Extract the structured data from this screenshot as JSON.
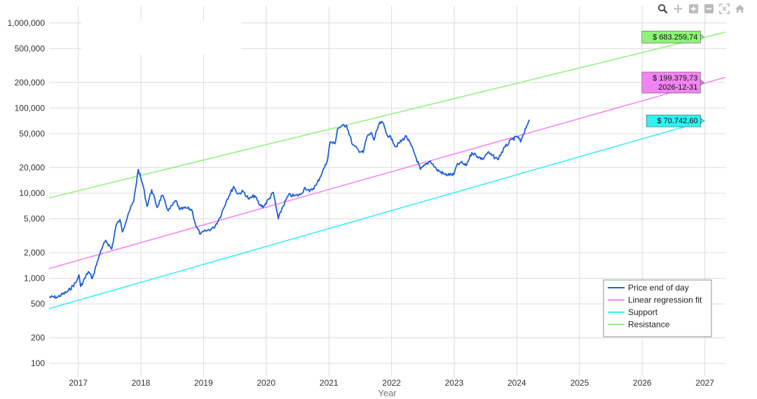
{
  "toolbar": {
    "icons": [
      "zoom-icon",
      "pan-icon",
      "zoom-in-icon",
      "zoom-out-icon",
      "autoscale-icon",
      "reset-axes-icon"
    ]
  },
  "chart_data": {
    "type": "line",
    "xlabel": "Year",
    "ylabel": "",
    "y_scale": "log",
    "grid": true,
    "legend_position": "bottom-right",
    "xlim": [
      "2016-07-15",
      "2027-05-01"
    ],
    "ylim": [
      70,
      1600000
    ],
    "x_ticks": [
      "2017",
      "2018",
      "2019",
      "2020",
      "2021",
      "2022",
      "2023",
      "2024",
      "2025",
      "2026",
      "2027"
    ],
    "y_ticks": [
      {
        "value": 100,
        "label": "100"
      },
      {
        "value": 200,
        "label": "200"
      },
      {
        "value": 500,
        "label": "500"
      },
      {
        "value": 1000,
        "label": "1,000"
      },
      {
        "value": 2000,
        "label": "2,000"
      },
      {
        "value": 5000,
        "label": "5,000"
      },
      {
        "value": 10000,
        "label": "10,000"
      },
      {
        "value": 20000,
        "label": "20,000"
      },
      {
        "value": 50000,
        "label": "50,000"
      },
      {
        "value": 100000,
        "label": "100,000"
      },
      {
        "value": 200000,
        "label": "200,000"
      },
      {
        "value": 500000,
        "label": "500,000"
      },
      {
        "value": 1000000,
        "label": "1,000,000"
      }
    ],
    "series": [
      {
        "name": "Price end of day",
        "color": "#1f5fd6",
        "type": "line",
        "x": [
          "2016-07-15",
          "2016-09-01",
          "2016-11-01",
          "2016-12-20",
          "2017-01-05",
          "2017-01-15",
          "2017-03-01",
          "2017-03-25",
          "2017-05-01",
          "2017-06-10",
          "2017-07-15",
          "2017-08-10",
          "2017-09-01",
          "2017-09-15",
          "2017-10-20",
          "2017-11-20",
          "2017-12-17",
          "2018-01-15",
          "2018-02-06",
          "2018-03-05",
          "2018-04-06",
          "2018-05-05",
          "2018-06-10",
          "2018-07-25",
          "2018-08-15",
          "2018-09-20",
          "2018-10-25",
          "2018-11-20",
          "2018-12-15",
          "2019-01-15",
          "2019-03-01",
          "2019-04-05",
          "2019-05-15",
          "2019-06-26",
          "2019-07-20",
          "2019-08-20",
          "2019-09-24",
          "2019-10-26",
          "2019-11-25",
          "2019-12-18",
          "2020-02-12",
          "2020-03-12",
          "2020-04-01",
          "2020-05-10",
          "2020-06-15",
          "2020-07-20",
          "2020-08-15",
          "2020-09-10",
          "2020-10-20",
          "2020-11-25",
          "2020-12-20",
          "2021-01-08",
          "2021-02-05",
          "2021-02-20",
          "2021-03-13",
          "2021-04-14",
          "2021-05-19",
          "2021-06-22",
          "2021-07-20",
          "2021-08-10",
          "2021-09-07",
          "2021-09-21",
          "2021-10-20",
          "2021-11-10",
          "2021-12-05",
          "2022-01-05",
          "2022-01-24",
          "2022-03-28",
          "2022-05-10",
          "2022-06-18",
          "2022-08-15",
          "2022-09-20",
          "2022-11-09",
          "2022-12-30",
          "2023-01-15",
          "2023-02-10",
          "2023-03-10",
          "2023-04-14",
          "2023-06-15",
          "2023-07-15",
          "2023-09-11",
          "2023-10-25",
          "2023-12-05",
          "2024-01-10",
          "2024-01-23",
          "2024-02-15",
          "2024-02-28",
          "2024-03-10",
          "2024-03-14"
        ],
        "y": [
          600,
          600,
          700,
          900,
          1100,
          800,
          1200,
          1000,
          1800,
          2800,
          2200,
          4200,
          4900,
          3500,
          5800,
          8000,
          19000,
          12000,
          7000,
          11000,
          6800,
          9500,
          6200,
          8200,
          6400,
          6700,
          6400,
          4000,
          3300,
          3600,
          3900,
          5100,
          8200,
          12000,
          9800,
          10500,
          8500,
          9400,
          7200,
          7000,
          10200,
          5000,
          6500,
          9500,
          9300,
          9600,
          11700,
          10400,
          12500,
          18000,
          23000,
          40000,
          38000,
          57000,
          61000,
          63000,
          37000,
          32000,
          30000,
          46000,
          51000,
          42000,
          65000,
          68000,
          49000,
          43000,
          35000,
          47000,
          31000,
          19000,
          24000,
          19000,
          16500,
          16500,
          21000,
          23000,
          21000,
          30000,
          25000,
          30000,
          25000,
          35000,
          43000,
          46000,
          40000,
          52000,
          62000,
          70000,
          73000
        ]
      },
      {
        "name": "Linear regression fit",
        "color": "#f283f2",
        "type": "trend",
        "x": [
          "2016-07-15",
          "2027-05-01"
        ],
        "y": [
          1300,
          230000
        ]
      },
      {
        "name": "Support",
        "color": "#2ff2f2",
        "type": "trend",
        "x": [
          "2016-07-15",
          "2027-01-01"
        ],
        "y": [
          440,
          70742.6
        ]
      },
      {
        "name": "Resistance",
        "color": "#8ef27a",
        "type": "trend",
        "x": [
          "2016-07-15",
          "2027-05-01"
        ],
        "y": [
          8800,
          780000
        ]
      }
    ],
    "annotations": [
      {
        "name": "resistance-target",
        "lines": [
          "$ 683.259,74"
        ],
        "x": "2026-12-31",
        "y": 683259.74,
        "bg": "#8ef27a"
      },
      {
        "name": "regression-target",
        "lines": [
          "$ 199.379,73",
          "2026-12-31"
        ],
        "x": "2026-12-31",
        "y": 199379.73,
        "bg": "#f283f2"
      },
      {
        "name": "support-target",
        "lines": [
          "$ 70.742,60"
        ],
        "x": "2027-01-01",
        "y": 70742.6,
        "bg": "#2ff2f2"
      }
    ]
  }
}
